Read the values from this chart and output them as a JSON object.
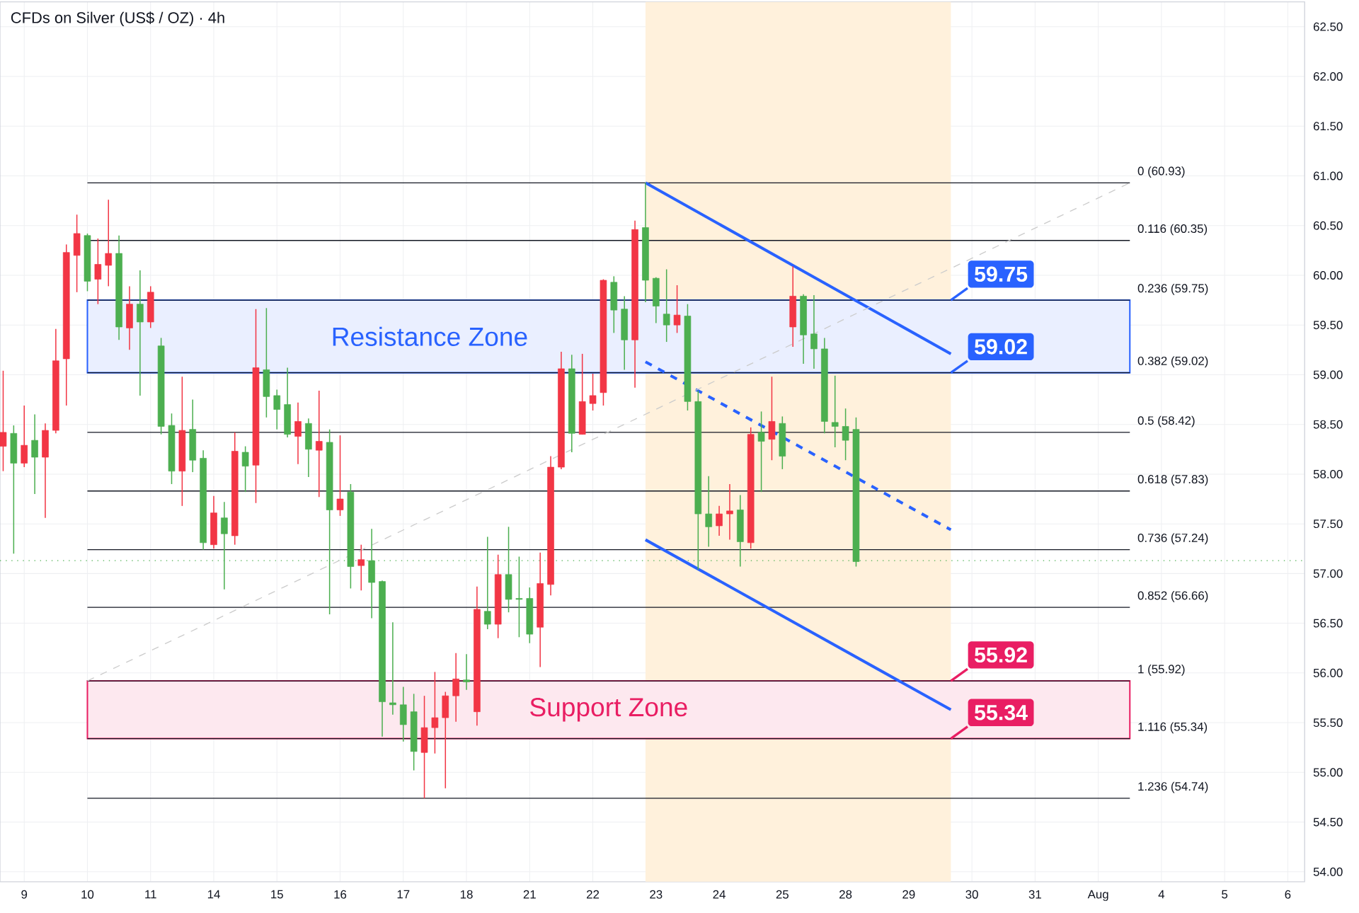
{
  "chart_data": {
    "type": "candlestick",
    "title": "CFDs on Silver (US$ / OZ) · 4h",
    "categories": [
      null,
      null,
      "9",
      null,
      null,
      null,
      null,
      null,
      "10",
      null,
      null,
      null,
      null,
      null,
      "11",
      null,
      null,
      null,
      null,
      null,
      "14",
      null,
      null,
      null,
      null,
      null,
      "15",
      null,
      null,
      null,
      null,
      null,
      "16",
      null,
      null,
      null,
      null,
      null,
      "17",
      null,
      null,
      null,
      null,
      null,
      "18",
      null,
      null,
      null,
      null,
      null,
      "21",
      null,
      null,
      null,
      null,
      null,
      "22",
      null,
      null,
      null,
      null,
      null,
      "23",
      null,
      null,
      null,
      null,
      null,
      "24",
      null,
      null,
      null,
      null,
      null,
      "25",
      null,
      null,
      null,
      null,
      null,
      "28",
      null,
      null,
      null,
      null,
      null,
      "29",
      null,
      null,
      null,
      null,
      null,
      "30",
      null,
      null,
      null,
      null,
      null,
      "31",
      null,
      null,
      null,
      null,
      null,
      "Aug",
      null,
      null,
      null,
      null,
      null,
      "4",
      null,
      null,
      null,
      null,
      null,
      "5",
      null,
      null,
      null,
      null,
      null,
      "6",
      null
    ],
    "ohlc": [
      [
        58.28,
        59.04,
        58.03,
        58.42
      ],
      [
        58.41,
        58.49,
        57.2,
        58.11
      ],
      [
        58.11,
        58.69,
        58.07,
        58.29
      ],
      [
        58.34,
        58.6,
        57.8,
        58.17
      ],
      [
        58.17,
        58.51,
        57.56,
        58.44
      ],
      [
        58.44,
        59.46,
        58.41,
        59.14
      ],
      [
        59.16,
        60.31,
        58.69,
        60.23
      ],
      [
        60.2,
        60.61,
        59.83,
        60.42
      ],
      [
        60.4,
        60.42,
        59.84,
        59.94
      ],
      [
        59.96,
        60.37,
        59.71,
        60.11
      ],
      [
        60.1,
        60.76,
        59.89,
        60.22
      ],
      [
        60.22,
        60.4,
        59.35,
        59.48
      ],
      [
        59.47,
        59.89,
        59.25,
        59.71
      ],
      [
        59.71,
        60.05,
        58.79,
        59.53
      ],
      [
        59.53,
        59.89,
        59.47,
        59.83
      ],
      [
        59.29,
        59.37,
        58.4,
        58.48
      ],
      [
        58.49,
        58.61,
        57.9,
        58.03
      ],
      [
        58.03,
        58.98,
        57.68,
        58.44
      ],
      [
        58.45,
        58.75,
        58.02,
        58.14
      ],
      [
        58.16,
        58.24,
        57.24,
        57.31
      ],
      [
        57.29,
        57.78,
        57.25,
        57.61
      ],
      [
        57.56,
        57.72,
        56.84,
        57.4
      ],
      [
        57.38,
        58.42,
        57.29,
        58.23
      ],
      [
        58.22,
        58.28,
        57.82,
        58.08
      ],
      [
        58.09,
        59.66,
        57.71,
        59.07
      ],
      [
        59.05,
        59.67,
        58.57,
        58.78
      ],
      [
        58.79,
        58.85,
        58.45,
        58.65
      ],
      [
        58.7,
        59.07,
        58.37,
        58.4
      ],
      [
        58.38,
        58.72,
        58.1,
        58.53
      ],
      [
        58.51,
        58.56,
        57.97,
        58.25
      ],
      [
        58.24,
        58.84,
        57.77,
        58.33
      ],
      [
        58.32,
        58.45,
        56.59,
        57.64
      ],
      [
        57.64,
        58.39,
        57.58,
        57.75
      ],
      [
        57.82,
        57.9,
        56.85,
        57.07
      ],
      [
        57.08,
        57.29,
        56.83,
        57.14
      ],
      [
        57.13,
        57.45,
        56.55,
        56.91
      ],
      [
        56.92,
        56.93,
        55.36,
        55.71
      ],
      [
        55.7,
        56.51,
        55.58,
        55.68
      ],
      [
        55.68,
        55.86,
        55.31,
        55.48
      ],
      [
        55.61,
        55.79,
        55.02,
        55.21
      ],
      [
        55.2,
        55.77,
        54.74,
        55.45
      ],
      [
        55.45,
        56.01,
        55.19,
        55.55
      ],
      [
        55.55,
        55.81,
        54.84,
        55.77
      ],
      [
        55.77,
        56.2,
        55.51,
        55.94
      ],
      [
        55.93,
        56.19,
        55.83,
        55.91
      ],
      [
        55.61,
        56.87,
        55.47,
        56.64
      ],
      [
        56.62,
        57.37,
        56.44,
        56.49
      ],
      [
        56.49,
        57.19,
        56.35,
        56.99
      ],
      [
        56.99,
        57.47,
        56.61,
        56.74
      ],
      [
        56.75,
        57.17,
        56.36,
        56.74
      ],
      [
        56.75,
        56.86,
        56.3,
        56.39
      ],
      [
        56.46,
        57.21,
        56.06,
        56.9
      ],
      [
        56.89,
        58.18,
        56.78,
        58.07
      ],
      [
        58.07,
        59.23,
        58.05,
        59.06
      ],
      [
        59.06,
        59.2,
        58.22,
        58.41
      ],
      [
        58.4,
        59.21,
        58.4,
        58.73
      ],
      [
        58.71,
        59.01,
        58.64,
        58.79
      ],
      [
        58.82,
        59.96,
        58.69,
        59.95
      ],
      [
        59.93,
        59.99,
        59.42,
        59.65
      ],
      [
        59.66,
        59.79,
        59.05,
        59.35
      ],
      [
        59.35,
        60.55,
        58.87,
        60.46
      ],
      [
        60.48,
        60.93,
        59.73,
        59.95
      ],
      [
        59.97,
        59.98,
        59.52,
        59.69
      ],
      [
        59.61,
        60.06,
        59.33,
        59.5
      ],
      [
        59.5,
        59.9,
        59.42,
        59.6
      ],
      [
        59.59,
        59.71,
        58.64,
        58.73
      ],
      [
        58.73,
        58.84,
        57.04,
        57.6
      ],
      [
        57.6,
        57.98,
        57.27,
        57.47
      ],
      [
        57.48,
        57.68,
        57.38,
        57.6
      ],
      [
        57.6,
        57.9,
        57.34,
        57.63
      ],
      [
        57.64,
        57.79,
        57.07,
        57.32
      ],
      [
        57.31,
        58.47,
        57.25,
        58.4
      ],
      [
        58.42,
        58.63,
        57.82,
        58.33
      ],
      [
        58.35,
        58.98,
        58.14,
        58.53
      ],
      [
        58.51,
        58.58,
        58.05,
        58.18
      ],
      [
        59.48,
        60.09,
        59.28,
        59.79
      ],
      [
        59.79,
        59.81,
        59.11,
        59.4
      ],
      [
        59.41,
        59.8,
        59.06,
        59.26
      ],
      [
        59.26,
        59.37,
        58.41,
        58.53
      ],
      [
        58.52,
        58.99,
        58.27,
        58.48
      ],
      [
        58.48,
        58.66,
        58.14,
        58.34
      ],
      [
        58.45,
        58.57,
        57.07,
        57.12
      ],
      null,
      null,
      null,
      null,
      null,
      null,
      null,
      null,
      null,
      null,
      null,
      null,
      null,
      null,
      null,
      null,
      null,
      null,
      null,
      null,
      null,
      null,
      null,
      null,
      null,
      null,
      null,
      null,
      null,
      null,
      null,
      null,
      null,
      null,
      null,
      null,
      null,
      null,
      null,
      null,
      null,
      null
    ],
    "colors": [
      "#f23645",
      "#4caf50",
      "#f23645",
      "#4caf50",
      "#f23645",
      "#f23645",
      "#f23645",
      "#f23645",
      "#4caf50",
      "#f23645",
      "#f23645",
      "#4caf50",
      "#f23645",
      "#4caf50",
      "#f23645",
      "#4caf50",
      "#4caf50",
      "#f23645",
      "#4caf50",
      "#4caf50",
      "#f23645",
      "#4caf50",
      "#f23645",
      "#4caf50",
      "#f23645",
      "#4caf50",
      "#4caf50",
      "#4caf50",
      "#f23645",
      "#4caf50",
      "#f23645",
      "#4caf50",
      "#f23645",
      "#4caf50",
      "#f23645",
      "#4caf50",
      "#4caf50",
      "#4caf50",
      "#4caf50",
      "#4caf50",
      "#f23645",
      "#f23645",
      "#f23645",
      "#f23645",
      "#4caf50",
      "#f23645",
      "#4caf50",
      "#f23645",
      "#4caf50",
      "#4caf50",
      "#4caf50",
      "#f23645",
      "#f23645",
      "#f23645",
      "#4caf50",
      "#f23645",
      "#f23645",
      "#f23645",
      "#4caf50",
      "#4caf50",
      "#f23645",
      "#4caf50",
      "#4caf50",
      "#4caf50",
      "#f23645",
      "#4caf50",
      "#4caf50",
      "#4caf50",
      "#f23645",
      "#f23645",
      "#4caf50",
      "#f23645",
      "#4caf50",
      "#f23645",
      "#4caf50",
      "#f23645",
      "#4caf50",
      "#4caf50",
      "#4caf50",
      "#4caf50",
      "#4caf50",
      "#4caf50",
      null,
      null,
      null,
      null,
      null,
      null,
      null,
      null,
      null,
      null,
      null,
      null,
      null,
      null,
      null,
      null,
      null,
      null,
      null,
      null,
      null,
      null,
      null,
      null,
      null,
      null,
      null,
      null,
      null,
      null,
      null,
      null,
      null,
      null,
      null,
      null,
      null,
      null,
      null,
      null,
      null,
      null
    ],
    "series": [
      {
        "type": "line",
        "color": "#2962ff",
        "values": [
          null,
          null,
          null,
          null,
          null,
          null,
          null,
          null,
          null,
          null,
          null,
          null,
          null,
          null,
          null,
          null,
          null,
          null,
          null,
          null,
          null,
          null,
          null,
          null,
          null,
          null,
          null,
          null,
          null,
          null,
          null,
          null,
          null,
          null,
          null,
          null,
          null,
          null,
          null,
          null,
          null,
          null,
          null,
          null,
          null,
          null,
          null,
          null,
          null,
          null,
          null,
          null,
          null,
          null,
          null,
          null,
          null,
          null,
          null,
          null,
          null,
          60.93,
          null,
          null,
          null,
          null,
          null,
          null,
          null,
          null,
          null,
          null,
          null,
          null,
          null,
          null,
          null,
          null,
          null,
          null,
          null,
          null,
          null,
          null,
          null,
          null,
          null,
          null,
          null,
          null,
          59.21,
          null,
          null,
          null,
          null,
          null,
          null,
          null,
          null,
          null,
          null,
          null,
          null,
          null,
          null,
          null,
          null,
          null,
          null,
          null,
          null,
          null,
          null,
          null,
          null,
          null,
          null,
          null,
          null,
          null,
          null,
          null,
          null,
          null
        ]
      },
      {
        "type": "line",
        "color": "#2962ff",
        "line_style": "dashed",
        "values": [
          null,
          null,
          null,
          null,
          null,
          null,
          null,
          null,
          null,
          null,
          null,
          null,
          null,
          null,
          null,
          null,
          null,
          null,
          null,
          null,
          null,
          null,
          null,
          null,
          null,
          null,
          null,
          null,
          null,
          null,
          null,
          null,
          null,
          null,
          null,
          null,
          null,
          null,
          null,
          null,
          null,
          null,
          null,
          null,
          null,
          null,
          null,
          null,
          null,
          null,
          null,
          null,
          null,
          null,
          null,
          null,
          null,
          null,
          null,
          null,
          null,
          59.13,
          null,
          null,
          null,
          null,
          null,
          null,
          null,
          null,
          null,
          null,
          null,
          null,
          null,
          null,
          null,
          null,
          null,
          null,
          null,
          null,
          null,
          null,
          null,
          null,
          null,
          null,
          null,
          null,
          57.44,
          null,
          null,
          null,
          null,
          null,
          null,
          null,
          null,
          null,
          null,
          null,
          null,
          null,
          null,
          null,
          null,
          null,
          null,
          null,
          null,
          null,
          null,
          null,
          null,
          null,
          null,
          null,
          null,
          null,
          null,
          null,
          null,
          null
        ]
      },
      {
        "type": "line",
        "color": "#2962ff",
        "values": [
          null,
          null,
          null,
          null,
          null,
          null,
          null,
          null,
          null,
          null,
          null,
          null,
          null,
          null,
          null,
          null,
          null,
          null,
          null,
          null,
          null,
          null,
          null,
          null,
          null,
          null,
          null,
          null,
          null,
          null,
          null,
          null,
          null,
          null,
          null,
          null,
          null,
          null,
          null,
          null,
          null,
          null,
          null,
          null,
          null,
          null,
          null,
          null,
          null,
          null,
          null,
          null,
          null,
          null,
          null,
          null,
          null,
          null,
          null,
          null,
          null,
          57.34,
          null,
          null,
          null,
          null,
          null,
          null,
          null,
          null,
          null,
          null,
          null,
          null,
          null,
          null,
          null,
          null,
          null,
          null,
          null,
          null,
          null,
          null,
          null,
          null,
          null,
          null,
          null,
          null,
          55.63,
          null,
          null,
          null,
          null,
          null,
          null,
          null,
          null,
          null,
          null,
          null,
          null,
          null,
          null,
          null,
          null,
          null,
          null,
          null,
          null,
          null,
          null,
          null,
          null,
          null,
          null,
          null,
          null,
          null,
          null,
          null,
          null,
          null
        ]
      },
      {
        "type": "line",
        "color": "#cccccc",
        "line_style": "dashed",
        "values": [
          null,
          null,
          null,
          null,
          null,
          null,
          null,
          null,
          55.92,
          null,
          null,
          null,
          null,
          null,
          null,
          null,
          null,
          null,
          null,
          null,
          null,
          null,
          null,
          null,
          null,
          null,
          null,
          null,
          null,
          null,
          null,
          null,
          null,
          null,
          null,
          null,
          null,
          null,
          null,
          null,
          null,
          null,
          null,
          null,
          null,
          null,
          null,
          null,
          null,
          null,
          null,
          null,
          null,
          null,
          null,
          null,
          null,
          null,
          null,
          null,
          null,
          null,
          null,
          null,
          null,
          null,
          null,
          null,
          null,
          null,
          null,
          null,
          null,
          null,
          null,
          null,
          null,
          null,
          null,
          null,
          null,
          null,
          null,
          null,
          null,
          null,
          null,
          null,
          null,
          null,
          null,
          null,
          null,
          null,
          null,
          null,
          null,
          null,
          null,
          null,
          null,
          null,
          null,
          null,
          null,
          null,
          null,
          60.93,
          null,
          null,
          null,
          null,
          null,
          null,
          null,
          null,
          null,
          null,
          null,
          null,
          null,
          null,
          null,
          null
        ]
      }
    ],
    "bands": [
      {
        "axis": "y",
        "from": 59.02,
        "to": 59.75,
        "label": "Resistance Zone",
        "color": "#2962ff"
      },
      {
        "axis": "y",
        "from": 55.34,
        "to": 55.92,
        "label": "Support Zone",
        "color": "#e91e63"
      }
    ],
    "ref_lines": [
      {
        "axis": "y",
        "value": 60.93,
        "label": "0 (60.93)",
        "color": "#131722"
      },
      {
        "axis": "y",
        "value": 60.35,
        "label": "0.116 (60.35)",
        "color": "#131722"
      },
      {
        "axis": "y",
        "value": 59.75,
        "label": "0.236 (59.75)",
        "color": "#131722"
      },
      {
        "axis": "y",
        "value": 59.02,
        "label": "0.382 (59.02)",
        "color": "#131722"
      },
      {
        "axis": "y",
        "value": 58.42,
        "label": "0.5 (58.42)",
        "color": "#131722"
      },
      {
        "axis": "y",
        "value": 57.83,
        "label": "0.618 (57.83)",
        "color": "#131722"
      },
      {
        "axis": "y",
        "value": 57.24,
        "label": "0.736 (57.24)",
        "color": "#131722"
      },
      {
        "axis": "y",
        "value": 56.66,
        "label": "0.852 (56.66)",
        "color": "#131722"
      },
      {
        "axis": "y",
        "value": 55.92,
        "label": "1 (55.92)",
        "color": "#131722"
      },
      {
        "axis": "y",
        "value": 55.34,
        "label": "1.116 (55.34)",
        "color": "#131722"
      },
      {
        "axis": "y",
        "value": 54.74,
        "label": "1.236 (54.74)",
        "color": "#131722"
      },
      {
        "axis": "y",
        "value": 57.13,
        "color": "#4caf50",
        "line_style": "dotted"
      }
    ],
    "annotations": [
      {
        "text": "59.75",
        "y": 59.75
      },
      {
        "text": "59.02",
        "y": 59.02
      },
      {
        "text": "55.92",
        "y": 55.92
      },
      {
        "text": "55.34",
        "y": 55.34
      }
    ],
    "ylim": [
      53.9,
      62.75
    ],
    "yticks": [
      {
        "value": 54,
        "label": "54.00"
      },
      {
        "value": 54.5,
        "label": "54.50"
      },
      {
        "value": 55,
        "label": "55.00"
      },
      {
        "value": 55.5,
        "label": "55.50"
      },
      {
        "value": 56,
        "label": "56.00"
      },
      {
        "value": 56.5,
        "label": "56.50"
      },
      {
        "value": 57,
        "label": "57.00"
      },
      {
        "value": 57.5,
        "label": "57.50"
      },
      {
        "value": 58,
        "label": "58.00"
      },
      {
        "value": 58.5,
        "label": "58.50"
      },
      {
        "value": 59,
        "label": "59.00"
      },
      {
        "value": 59.5,
        "label": "59.50"
      },
      {
        "value": 60,
        "label": "60.00"
      },
      {
        "value": 60.5,
        "label": "60.50"
      },
      {
        "value": 61,
        "label": "61.00"
      },
      {
        "value": 61.5,
        "label": "61.50"
      },
      {
        "value": 62,
        "label": "62.00"
      },
      {
        "value": 62.5,
        "label": "62.50"
      }
    ],
    "grid": true
  }
}
